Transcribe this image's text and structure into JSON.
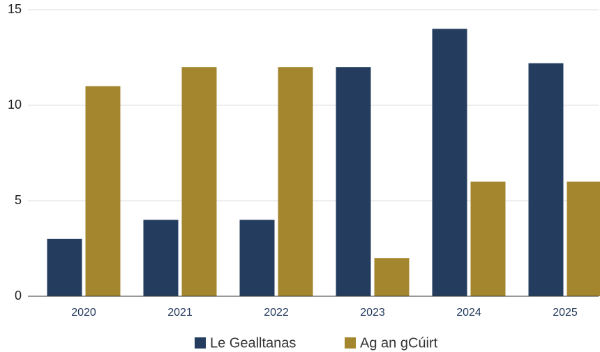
{
  "chart_data": {
    "type": "bar",
    "categories": [
      "2020",
      "2021",
      "2022",
      "2023",
      "2024",
      "2025"
    ],
    "series": [
      {
        "name": "Le Gealltanas",
        "color": "#243d5f",
        "values": [
          3,
          4,
          4,
          12,
          14,
          12.2
        ]
      },
      {
        "name": "Ag an gCúirt",
        "color": "#a3862e",
        "values": [
          11,
          12,
          12,
          2,
          6,
          6
        ]
      }
    ],
    "ylim": [
      0,
      15
    ],
    "yticks": [
      0,
      5,
      10,
      15
    ],
    "grid": true
  }
}
